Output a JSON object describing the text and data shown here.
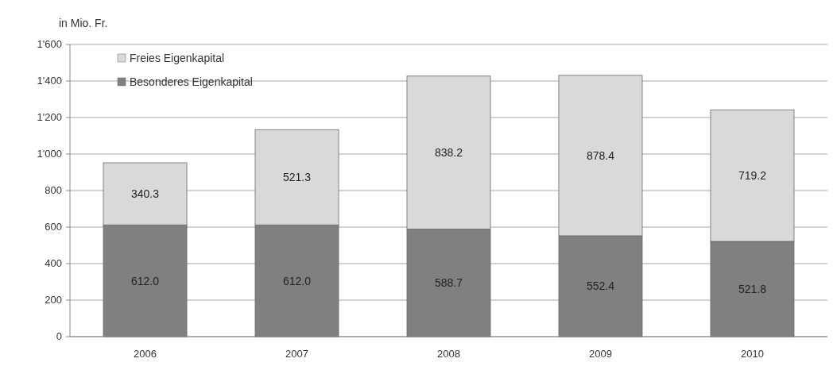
{
  "chart_data": {
    "type": "bar",
    "stacked": true,
    "ylabel": "in Mio. Fr.",
    "categories": [
      "2006",
      "2007",
      "2008",
      "2009",
      "2010"
    ],
    "series": [
      {
        "name": "Besonderes Eigenkapital",
        "color": "#808080",
        "values": [
          612.0,
          612.0,
          588.7,
          552.4,
          521.8
        ],
        "value_labels": [
          "612.0",
          "612.0",
          "588.7",
          "552.4",
          "521.8"
        ]
      },
      {
        "name": "Freies Eigenkapital",
        "color": "#d9d9d9",
        "values": [
          340.3,
          521.3,
          838.2,
          878.4,
          719.2
        ],
        "value_labels": [
          "340.3",
          "521.3",
          "838.2",
          "878.4",
          "719.2"
        ]
      }
    ],
    "ylim": [
      0,
      1600
    ],
    "yticks": [
      0,
      200,
      400,
      600,
      800,
      {
        "value": 1000,
        "label": "1'000"
      },
      {
        "value": 1200,
        "label": "1'200"
      },
      {
        "value": 1400,
        "label": "1'400"
      },
      {
        "value": 1600,
        "label": "1'600"
      }
    ],
    "grid": "y",
    "legend": "top left"
  }
}
